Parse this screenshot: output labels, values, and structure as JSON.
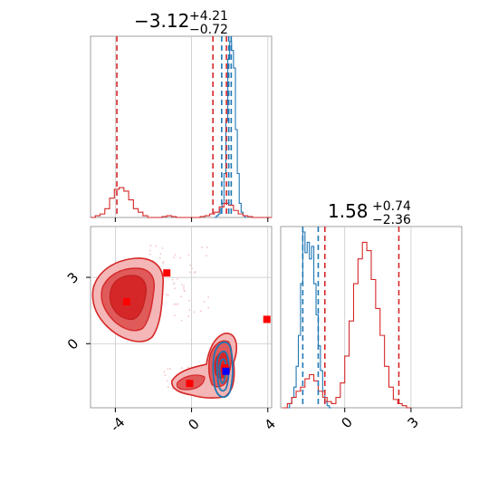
{
  "chart_data": {
    "type": "corner",
    "colors": {
      "series_a": "#1f77b4",
      "series_b": "#d62728",
      "grid": "#b0b0b0"
    },
    "panels": [
      {
        "name": "marginal-x",
        "type": "histogram",
        "title": {
          "value": "−3.12",
          "plus": "+4.21",
          "minus": "−0.72"
        },
        "xlim": [
          -5.3,
          4.2
        ],
        "ticks": [
          "-4",
          "0",
          "4"
        ],
        "tick_values": [
          -4,
          0,
          4
        ],
        "series": [
          {
            "color": "#1f77b4",
            "bins_start": 1.2,
            "bin_width": 0.1,
            "counts": [
              0.0,
              0.01,
              0.02,
              0.05,
              0.08,
              0.25,
              0.55,
              0.9,
              1.0,
              0.95,
              0.85,
              0.5,
              0.25,
              0.08,
              0.03,
              0.01,
              0.0
            ],
            "lines": [
              1.58,
              1.95,
              2.08
            ]
          },
          {
            "color": "#d62728",
            "bins_start": -5.3,
            "bin_width": 0.25,
            "counts": [
              0.0,
              0.01,
              0.02,
              0.05,
              0.11,
              0.16,
              0.17,
              0.15,
              0.1,
              0.05,
              0.03,
              0.01,
              0.0,
              0.0,
              0.0,
              0.005,
              0.01,
              0.005,
              0.0,
              0.0,
              0.0,
              0.0,
              0.0,
              0.005,
              0.01,
              0.02,
              0.03,
              0.06,
              0.08,
              0.07,
              0.04,
              0.02,
              0.01,
              0.005,
              0.0,
              0.0,
              0.0,
              0.0
            ],
            "lines": [
              -3.92,
              1.12,
              1.83
            ]
          }
        ]
      },
      {
        "name": "marginal-y",
        "type": "histogram",
        "title": {
          "value": "1.58",
          "plus": "+0.74",
          "minus": "−2.36"
        },
        "xlim": [
          -2.9,
          5.3
        ],
        "ticks": [
          "0",
          "3"
        ],
        "tick_values": [
          0,
          3
        ],
        "series": [
          {
            "color": "#1f77b4",
            "bins_start": -2.6,
            "bin_width": 0.1,
            "counts": [
              0.0,
              0.02,
              0.05,
              0.1,
              0.2,
              0.35,
              0.6,
              0.85,
              0.75,
              0.8,
              0.72,
              0.78,
              0.6,
              0.45,
              0.3,
              0.18,
              0.08,
              0.03,
              0.01,
              0.0
            ],
            "lines": [
              -1.9,
              -1.2
            ]
          },
          {
            "color": "#d62728",
            "bins_start": -2.8,
            "bin_width": 0.2,
            "counts": [
              0.0,
              0.02,
              0.05,
              0.08,
              0.1,
              0.14,
              0.16,
              0.13,
              0.08,
              0.05,
              0.03,
              0.02,
              0.05,
              0.12,
              0.25,
              0.42,
              0.6,
              0.72,
              0.8,
              0.76,
              0.62,
              0.48,
              0.35,
              0.2,
              0.1,
              0.04,
              0.02,
              0.01,
              0.0
            ],
            "lines": [
              -0.9,
              2.45
            ]
          }
        ]
      },
      {
        "name": "joint",
        "type": "contour",
        "xlim": [
          -5.3,
          4.2
        ],
        "ylim": [
          -2.9,
          5.3
        ],
        "xticks": [
          "-4",
          "0",
          "4"
        ],
        "xtick_values": [
          -4,
          0,
          4
        ],
        "yticks": [
          "0",
          "3"
        ],
        "ytick_values": [
          0,
          3
        ],
        "points_red": [
          [
            -1.3,
            3.2
          ],
          [
            -3.4,
            1.9
          ],
          [
            1.75,
            -1.1
          ],
          [
            -0.1,
            -1.8
          ],
          [
            3.95,
            1.1
          ],
          [
            1.8,
            -1.2
          ]
        ],
        "points_blue": [
          [
            1.8,
            -1.25
          ]
        ]
      }
    ]
  }
}
